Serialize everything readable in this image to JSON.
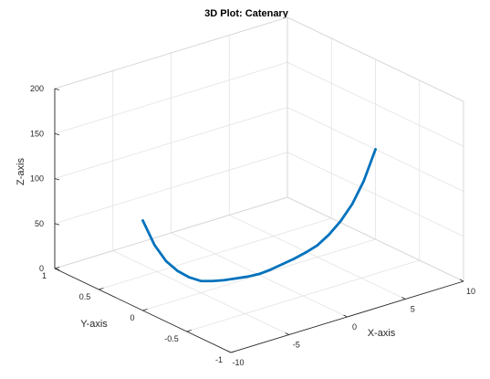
{
  "chart_data": {
    "type": "line",
    "projection": "3d",
    "title": "3D Plot: Catenary",
    "xlabel": "X-axis",
    "ylabel": "Y-axis",
    "zlabel": "Z-axis",
    "xlim": [
      -10,
      10
    ],
    "ylim": [
      -1,
      1
    ],
    "zlim": [
      0,
      200
    ],
    "xticks": [
      "-10",
      "-5",
      "0",
      "5",
      "10"
    ],
    "yticks": [
      "-1",
      "-0.5",
      "0",
      "0.5",
      "1"
    ],
    "zticks": [
      "0",
      "50",
      "100",
      "150",
      "200"
    ],
    "grid": true,
    "box": true,
    "series": [
      {
        "color": "#0072BD",
        "y": 0,
        "x": [
          -10,
          -9,
          -8,
          -7,
          -6,
          -5,
          -4,
          -3,
          -2,
          -1,
          0,
          1,
          2,
          3,
          4,
          5,
          6,
          7,
          8,
          9,
          10
        ],
        "z": [
          100,
          69,
          47,
          32,
          21,
          13,
          9,
          6,
          4,
          2,
          1,
          2,
          4,
          6,
          9,
          13,
          21,
          32,
          47,
          69,
          100
        ]
      }
    ]
  }
}
